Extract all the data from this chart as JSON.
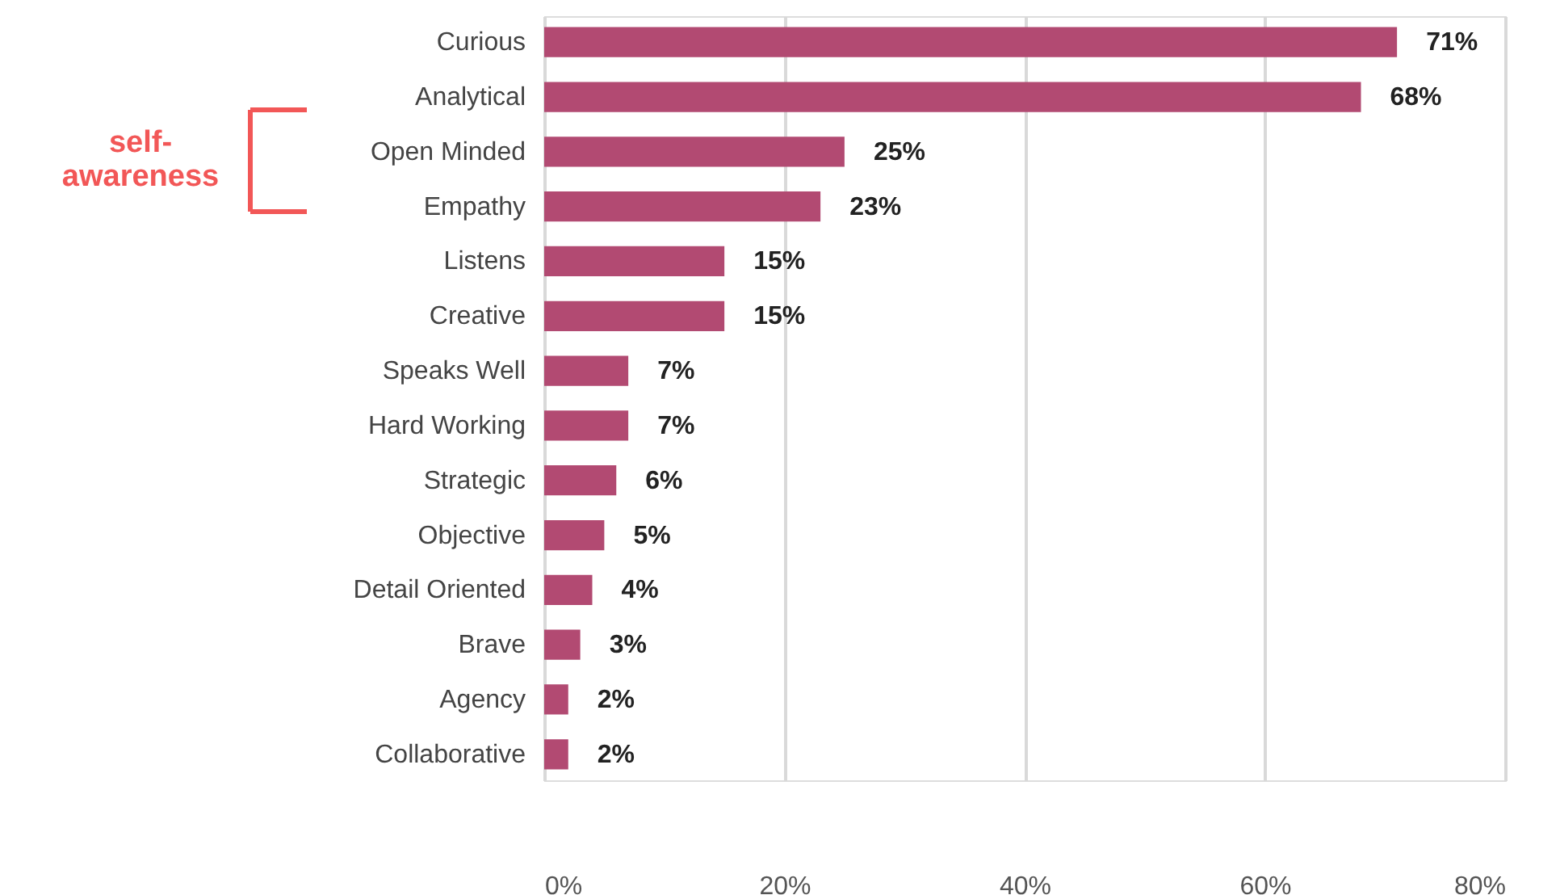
{
  "chart_data": {
    "type": "bar",
    "orientation": "horizontal",
    "categories": [
      "Curious",
      "Analytical",
      "Open Minded",
      "Empathy",
      "Listens",
      "Creative",
      "Speaks Well",
      "Hard Working",
      "Strategic",
      "Objective",
      "Detail Oriented",
      "Brave",
      "Agency",
      "Collaborative"
    ],
    "values": [
      71,
      68,
      25,
      23,
      15,
      15,
      7,
      7,
      6,
      5,
      4,
      3,
      2,
      2
    ],
    "value_labels": [
      "71%",
      "68%",
      "25%",
      "23%",
      "15%",
      "15%",
      "7%",
      "7%",
      "6%",
      "5%",
      "4%",
      "3%",
      "2%",
      "2%"
    ],
    "color": "#b24a72",
    "xlim": [
      0,
      80
    ],
    "xticks": [
      {
        "value": 0,
        "label": "0%"
      },
      {
        "value": 20,
        "label": "20%"
      },
      {
        "value": 40,
        "label": "40%"
      },
      {
        "value": 60,
        "label": "60%"
      },
      {
        "value": 80,
        "label": "80%"
      }
    ],
    "grid": "x",
    "annotations": [
      "self-\nawareness"
    ]
  }
}
